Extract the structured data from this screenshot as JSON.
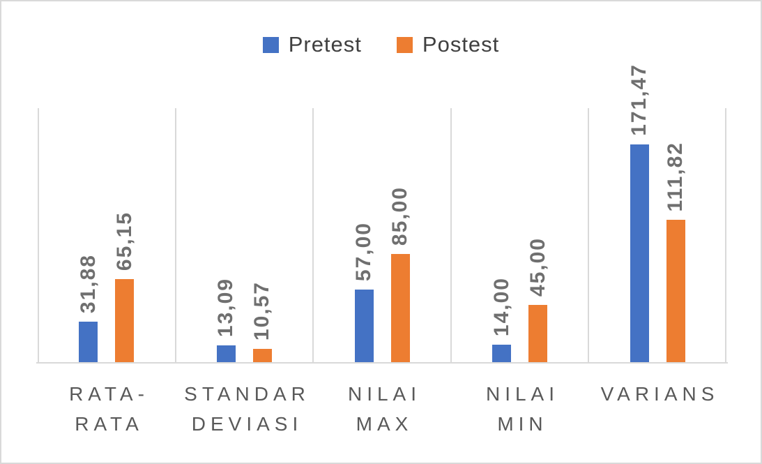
{
  "chart_data": {
    "type": "bar",
    "categories": [
      "RATA-RATA",
      "STANDAR DEVIASI",
      "NILAI MAX",
      "NILAI MIN",
      "VARIANS"
    ],
    "category_label_lines": [
      [
        "RATA-",
        "RATA"
      ],
      [
        "STANDAR",
        "DEVIASI"
      ],
      [
        "NILAI",
        "MAX"
      ],
      [
        "NILAI",
        "MIN"
      ],
      [
        "VARIANS"
      ]
    ],
    "series": [
      {
        "name": "Pretest",
        "color": "#4472C4",
        "values": [
          31.88,
          13.09,
          57.0,
          14.0,
          171.47
        ],
        "value_labels": [
          "31,88",
          "13,09",
          "57,00",
          "14,00",
          "171,47"
        ]
      },
      {
        "name": "Postest",
        "color": "#ED7D31",
        "values": [
          65.15,
          10.57,
          85.0,
          45.0,
          111.82
        ],
        "value_labels": [
          "65,15",
          "10,57",
          "85,00",
          "45,00",
          "111,82"
        ]
      }
    ],
    "title": "",
    "xlabel": "",
    "ylabel": "",
    "ylim": [
      0,
      200
    ],
    "grid": "vertical-category-separators",
    "legend_position": "top",
    "value_format": "comma-decimal"
  },
  "colors": {
    "pretest": "#4472C4",
    "postest": "#ED7D31",
    "data_label_text": "#6f6f6f",
    "category_text": "#595959",
    "legend_text": "#404040",
    "gridline": "#D9D9D9",
    "axis_line": "#D9D9D9",
    "border": "#D9D9D9",
    "background": "#FFFFFF"
  }
}
